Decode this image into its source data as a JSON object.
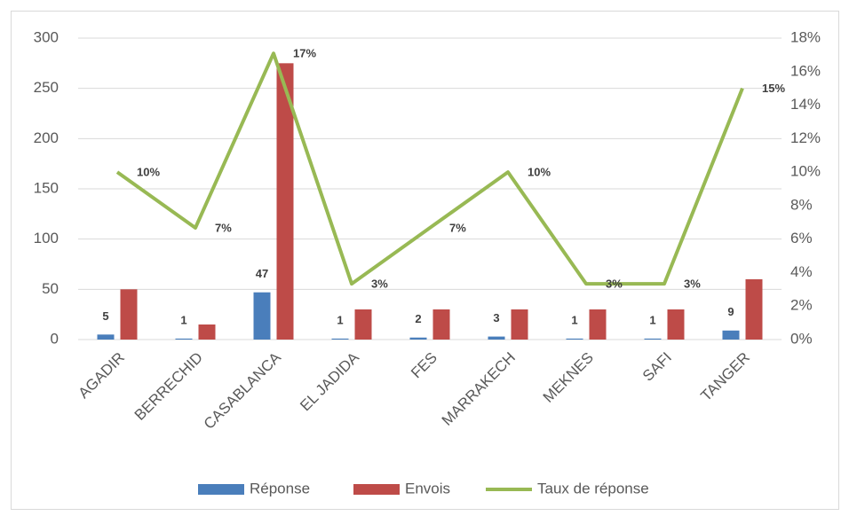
{
  "chart_data": {
    "type": "combo",
    "categories": [
      "AGADIR",
      "BERRECHID",
      "CASABLANCA",
      "EL JADIDA",
      "FES",
      "MARRAKECH",
      "MEKNES",
      "SAFI",
      "TANGER"
    ],
    "series": [
      {
        "name": "Réponse",
        "type": "bar",
        "color": "#4a7ebb",
        "values": [
          5,
          1,
          47,
          1,
          2,
          3,
          1,
          1,
          9
        ]
      },
      {
        "name": "Envois",
        "type": "bar",
        "color": "#be4b48",
        "values": [
          50,
          15,
          275,
          30,
          30,
          30,
          30,
          30,
          60
        ]
      },
      {
        "name": "Taux de réponse",
        "type": "line",
        "axis": "y2",
        "color": "#98b954",
        "values": [
          10,
          6.67,
          17.09,
          3.33,
          6.67,
          10,
          3.33,
          3.33,
          15
        ],
        "value_labels": [
          "10%",
          "7%",
          "17%",
          "3%",
          "7%",
          "10%",
          "3%",
          "3%",
          "15%"
        ]
      }
    ],
    "ylim": [
      0,
      300
    ],
    "yticks": [
      0,
      50,
      100,
      150,
      200,
      250,
      300
    ],
    "y2lim": [
      0,
      18
    ],
    "y2ticks": [
      {
        "value": 0,
        "label": "0%"
      },
      {
        "value": 2,
        "label": "2%"
      },
      {
        "value": 4,
        "label": "4%"
      },
      {
        "value": 6,
        "label": "6%"
      },
      {
        "value": 8,
        "label": "8%"
      },
      {
        "value": 10,
        "label": "10%"
      },
      {
        "value": 12,
        "label": "12%"
      },
      {
        "value": 14,
        "label": "14%"
      },
      {
        "value": 16,
        "label": "16%"
      },
      {
        "value": 18,
        "label": "18%"
      }
    ],
    "grid": true,
    "legend": "bottom"
  }
}
